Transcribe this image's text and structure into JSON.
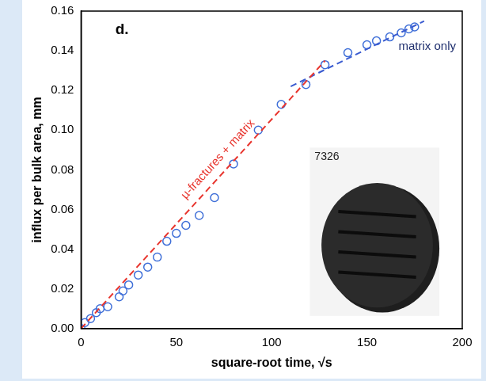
{
  "chart_data": {
    "type": "scatter",
    "xlabel": "square-root time, √s",
    "ylabel": "influx per bulk area, mm",
    "annotations": [
      "d.",
      "7326"
    ],
    "xlim": [
      0,
      200
    ],
    "xticks": [
      0,
      50,
      100,
      150,
      200
    ],
    "ylim": [
      0,
      0.16
    ],
    "yticks": [
      {
        "value": 0,
        "label": "0.00"
      },
      {
        "value": 0.02,
        "label": "0.02"
      },
      {
        "value": 0.04,
        "label": "0.04"
      },
      {
        "value": 0.06,
        "label": "0.06"
      },
      {
        "value": 0.08,
        "label": "0.08"
      },
      {
        "value": 0.1,
        "label": "0.10"
      },
      {
        "value": 0.12,
        "label": "0.12"
      },
      {
        "value": 0.14,
        "label": "0.14"
      },
      {
        "value": 0.16,
        "label": "0.16"
      }
    ],
    "grid": false,
    "series": [
      {
        "type": "scatter",
        "marker": "open circle",
        "color": "#3f6fd8",
        "x": [
          0,
          2,
          5,
          8,
          10,
          14,
          20,
          22,
          25,
          30,
          35,
          40,
          45,
          50,
          55,
          62,
          70,
          80,
          93,
          105,
          118,
          128,
          140,
          150,
          155,
          162,
          168,
          172,
          175
        ],
        "values": [
          0.0,
          0.003,
          0.005,
          0.008,
          0.01,
          0.011,
          0.016,
          0.019,
          0.022,
          0.027,
          0.031,
          0.036,
          0.044,
          0.048,
          0.052,
          0.057,
          0.066,
          0.083,
          0.1,
          0.113,
          0.123,
          0.133,
          0.139,
          0.143,
          0.145,
          0.147,
          0.149,
          0.151,
          0.152
        ]
      },
      {
        "name": "µ-fractures + matrix",
        "type": "line",
        "line_style": "dashed",
        "color": "#e8352e",
        "x": [
          0,
          128
        ],
        "values": [
          0,
          0.135
        ]
      },
      {
        "name": "matrix only",
        "type": "line",
        "line_style": "dashed",
        "color": "#3a5bd0",
        "x": [
          110,
          180
        ],
        "values": [
          0.122,
          0.155
        ]
      }
    ]
  }
}
